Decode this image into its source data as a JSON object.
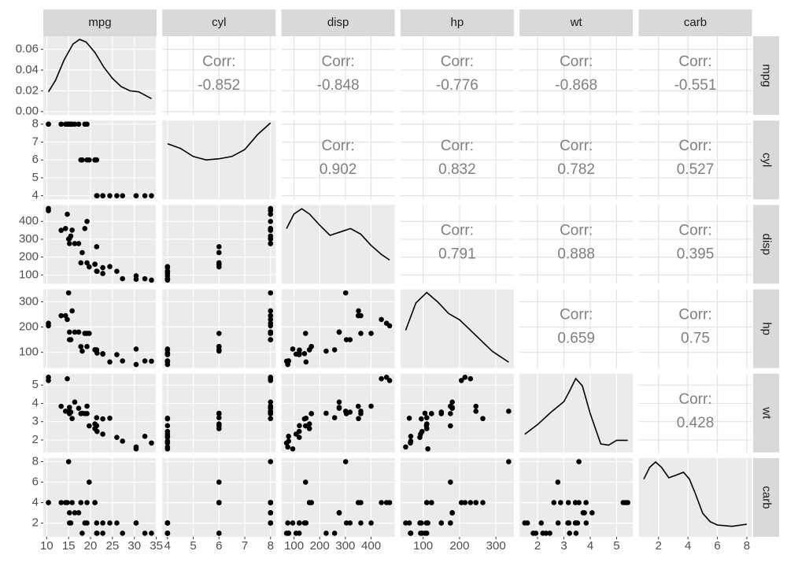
{
  "chart_data": {
    "type": "scatter-matrix",
    "corr_label": "Corr:",
    "variables": [
      {
        "name": "mpg",
        "lim": [
          9.225,
          35.075
        ],
        "ticks": [
          10,
          15,
          20,
          25,
          30,
          35
        ],
        "values": [
          21,
          21,
          22.8,
          21.4,
          18.7,
          18.1,
          14.3,
          24.4,
          22.8,
          19.2,
          17.8,
          16.4,
          17.3,
          15.2,
          10.4,
          10.4,
          14.7,
          32.4,
          30.4,
          33.9,
          21.5,
          15.5,
          15.2,
          13.3,
          19.2,
          27.3,
          26,
          30.4,
          15.8,
          19.7,
          15,
          21.4
        ]
      },
      {
        "name": "cyl",
        "lim": [
          3.8,
          8.2
        ],
        "ticks": [
          4,
          5,
          6,
          7,
          8
        ],
        "values": [
          6,
          6,
          4,
          6,
          8,
          6,
          8,
          4,
          4,
          6,
          6,
          8,
          8,
          8,
          8,
          8,
          8,
          4,
          4,
          4,
          4,
          8,
          8,
          8,
          8,
          4,
          4,
          4,
          8,
          6,
          8,
          4
        ]
      },
      {
        "name": "disp",
        "lim": [
          51.055,
          492.045
        ],
        "ticks": [
          100,
          200,
          300,
          400
        ],
        "values": [
          160,
          160,
          108,
          258,
          360,
          225,
          360,
          146.7,
          140.8,
          167.6,
          167.6,
          275.8,
          275.8,
          275.8,
          472,
          460,
          440,
          78.7,
          75.7,
          71.1,
          120.1,
          318,
          304,
          350,
          400,
          79,
          120.3,
          95.1,
          351,
          145,
          301,
          121
        ]
      },
      {
        "name": "hp",
        "lim": [
          37.85,
          349.15
        ],
        "ticks": [
          100,
          200,
          300
        ],
        "values": [
          110,
          110,
          93,
          110,
          175,
          105,
          245,
          62,
          95,
          123,
          123,
          180,
          180,
          180,
          205,
          215,
          230,
          66,
          52,
          65,
          97,
          150,
          150,
          245,
          175,
          66,
          91,
          113,
          264,
          175,
          335,
          109
        ]
      },
      {
        "name": "wt",
        "lim": [
          1.31745,
          5.61955
        ],
        "ticks": [
          2,
          3,
          4,
          5
        ],
        "values": [
          2.62,
          2.875,
          2.32,
          3.215,
          3.44,
          3.46,
          3.57,
          3.19,
          3.15,
          3.44,
          3.44,
          4.07,
          3.73,
          3.78,
          5.25,
          5.424,
          5.345,
          2.2,
          1.615,
          1.835,
          2.465,
          3.52,
          3.435,
          3.84,
          3.845,
          1.935,
          2.14,
          1.513,
          3.17,
          2.77,
          3.57,
          2.78
        ]
      },
      {
        "name": "carb",
        "lim": [
          0.65,
          8.35
        ],
        "ticks": [
          2,
          4,
          6,
          8
        ],
        "values": [
          4,
          4,
          1,
          1,
          2,
          1,
          4,
          2,
          2,
          4,
          4,
          3,
          3,
          3,
          4,
          4,
          4,
          1,
          2,
          1,
          1,
          2,
          2,
          4,
          2,
          1,
          2,
          2,
          4,
          6,
          8,
          2
        ]
      }
    ],
    "correlations": [
      [
        -0.852,
        -0.848,
        -0.776,
        -0.868,
        -0.551
      ],
      [
        0.902,
        0.832,
        0.782,
        0.527
      ],
      [
        0.791,
        0.888,
        0.395
      ],
      [
        0.659,
        0.75
      ],
      [
        0.428
      ]
    ],
    "densities": [
      {
        "ylim": [
          -0.0032,
          0.0726
        ],
        "yticks": [
          {
            "value": 0,
            "label": "0.00"
          },
          0.02,
          0.04,
          0.06
        ],
        "x": [
          10.4,
          12,
          14,
          16,
          17.5,
          19,
          21,
          23,
          25,
          27,
          29,
          31,
          33.9
        ],
        "y": [
          0.019,
          0.03,
          0.05,
          0.065,
          0.0695,
          0.067,
          0.057,
          0.043,
          0.032,
          0.024,
          0.02,
          0.019,
          0.0125
        ]
      },
      {
        "ylim": [
          0.05,
          0.39
        ],
        "x": [
          4,
          4.5,
          5,
          5.5,
          6,
          6.5,
          7,
          7.5,
          8
        ],
        "y": [
          0.29,
          0.27,
          0.235,
          0.22,
          0.225,
          0.235,
          0.265,
          0.33,
          0.38
        ]
      },
      {
        "ylim": [
          0,
          0.0035
        ],
        "x": [
          71,
          100,
          130,
          160,
          200,
          240,
          280,
          320,
          360,
          400,
          440,
          472
        ],
        "y": [
          0.00245,
          0.0031,
          0.00333,
          0.0031,
          0.0026,
          0.00215,
          0.0023,
          0.00245,
          0.0022,
          0.0017,
          0.0013,
          0.00105
        ]
      },
      {
        "ylim": [
          0,
          0.0075
        ],
        "x": [
          52,
          80,
          110,
          140,
          170,
          200,
          230,
          260,
          290,
          335
        ],
        "y": [
          0.0036,
          0.0062,
          0.0072,
          0.0063,
          0.0052,
          0.0046,
          0.0036,
          0.0026,
          0.0016,
          0.00056
        ]
      },
      {
        "ylim": [
          0,
          0.65
        ],
        "x": [
          1.513,
          2,
          2.5,
          3,
          3.2,
          3.45,
          3.7,
          4,
          4.4,
          4.7,
          5,
          5.424
        ],
        "y": [
          0.15,
          0.23,
          0.33,
          0.42,
          0.5,
          0.61,
          0.55,
          0.32,
          0.07,
          0.06,
          0.1,
          0.1
        ]
      },
      {
        "ylim": [
          0,
          0.3
        ],
        "x": [
          1,
          1.4,
          1.8,
          2.2,
          2.7,
          3.2,
          3.7,
          4.1,
          4.5,
          5,
          5.5,
          6,
          7,
          8
        ],
        "y": [
          0.22,
          0.265,
          0.285,
          0.265,
          0.225,
          0.235,
          0.246,
          0.22,
          0.165,
          0.09,
          0.058,
          0.045,
          0.04,
          0.048
        ]
      }
    ]
  }
}
